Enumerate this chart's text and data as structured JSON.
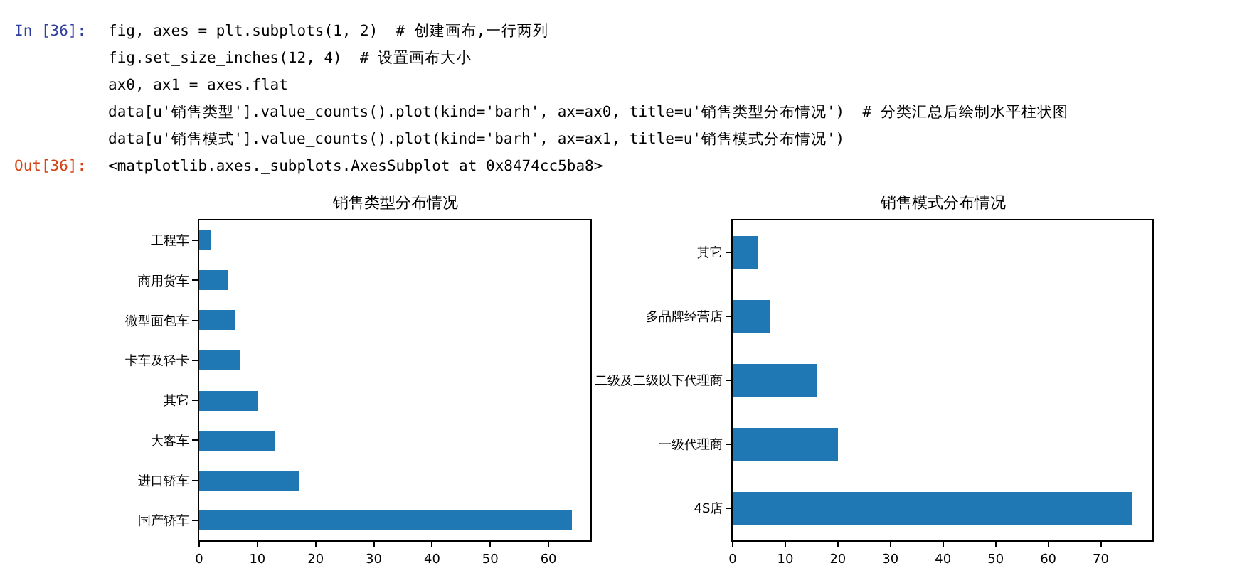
{
  "chart_data": [
    {
      "type": "bar",
      "orientation": "horizontal",
      "title": "销售类型分布情况",
      "categories": [
        "工程车",
        "商用货车",
        "微型面包车",
        "卡车及轻卡",
        "其它",
        "大客车",
        "进口轿车",
        "国产轿车"
      ],
      "values": [
        2,
        5,
        6,
        7,
        10,
        13,
        17,
        64
      ],
      "color": "#1f77b4",
      "xlim": [
        0,
        67.2
      ],
      "xticks": [
        0,
        10,
        20,
        30,
        40,
        50,
        60
      ],
      "annotations": [
        "In [36]:",
        "fig, axes = plt.subplots(1, 2)  # 创建画布,一行两列",
        "fig.set_size_inches(12, 4)  # 设置画布大小",
        "ax0, ax1 = axes.flat",
        "data[u'销售类型'].value_counts().plot(kind='barh', ax=ax0, title=u'销售类型分布情况')  # 分类汇总后绘制水平柱状图",
        "data[u'销售模式'].value_counts().plot(kind='barh', ax=ax1, title=u'销售模式分布情况')",
        "Out[36]:",
        "<matplotlib.axes._subplots.AxesSubplot at 0x8474cc5ba8>"
      ]
    },
    {
      "type": "bar",
      "orientation": "horizontal",
      "title": "销售模式分布情况",
      "categories": [
        "其它",
        "多品牌经营店",
        "二级及二级以下代理商",
        "一级代理商",
        "4S店"
      ],
      "values": [
        5,
        7,
        16,
        20,
        76
      ],
      "color": "#1f77b4",
      "xlim": [
        0,
        79.8
      ],
      "xticks": [
        0,
        10,
        20,
        30,
        40,
        50,
        60,
        70
      ]
    }
  ]
}
